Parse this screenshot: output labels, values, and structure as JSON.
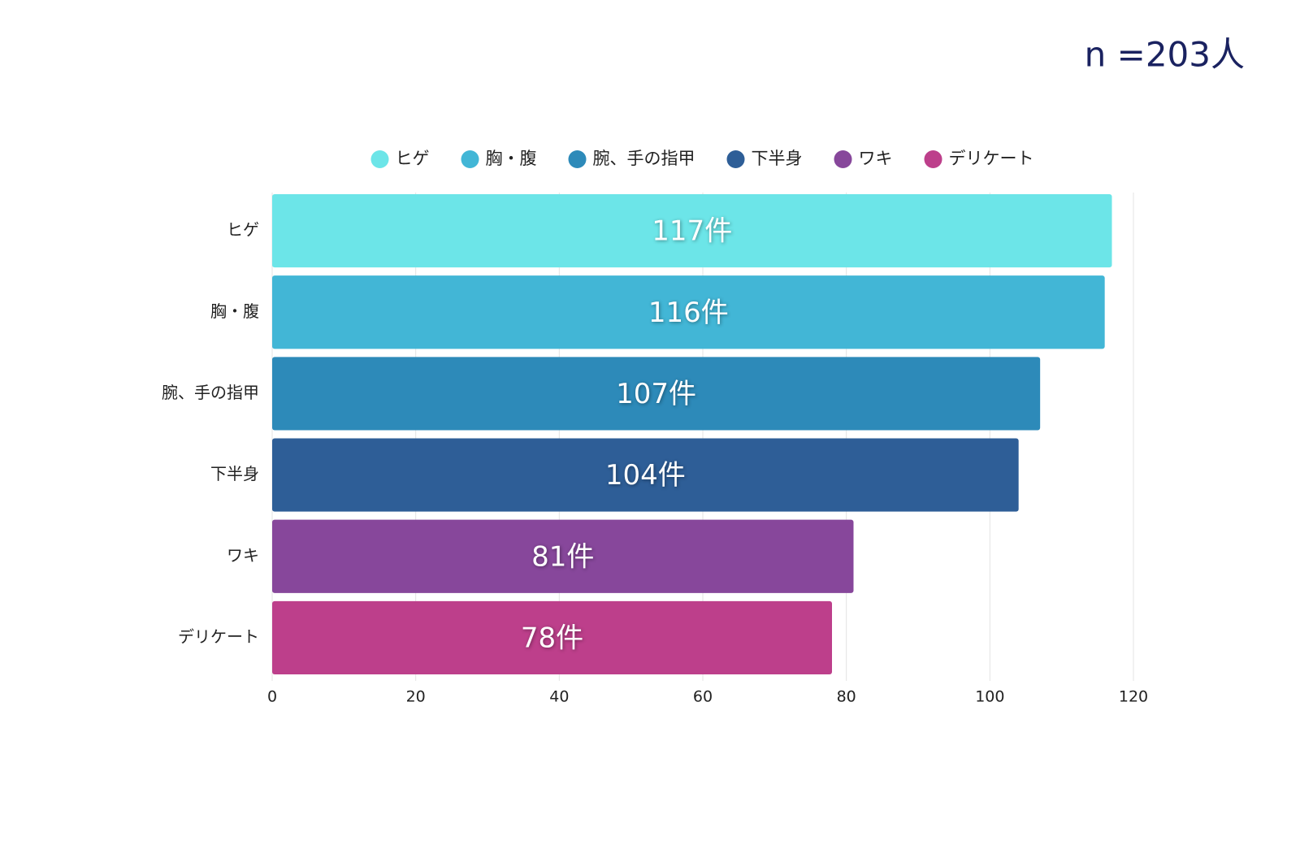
{
  "chart_data": {
    "type": "hbar",
    "annotation": "n =203人",
    "categories": [
      "ヒゲ",
      "胸・腹",
      "腕、手の指甲",
      "下半身",
      "ワキ",
      "デリケート"
    ],
    "values": [
      117,
      116,
      107,
      104,
      81,
      78
    ],
    "value_labels": [
      "117件",
      "116件",
      "107件",
      "104件",
      "81件",
      "78件"
    ],
    "colors": [
      "#6ce5e8",
      "#42b6d6",
      "#2d8ab9",
      "#2e5e97",
      "#87479b",
      "#bd3f8b"
    ],
    "xlim": [
      0,
      120
    ],
    "xticks": [
      0,
      20,
      40,
      60,
      80,
      100,
      120
    ],
    "grid": true,
    "legend": "top"
  }
}
